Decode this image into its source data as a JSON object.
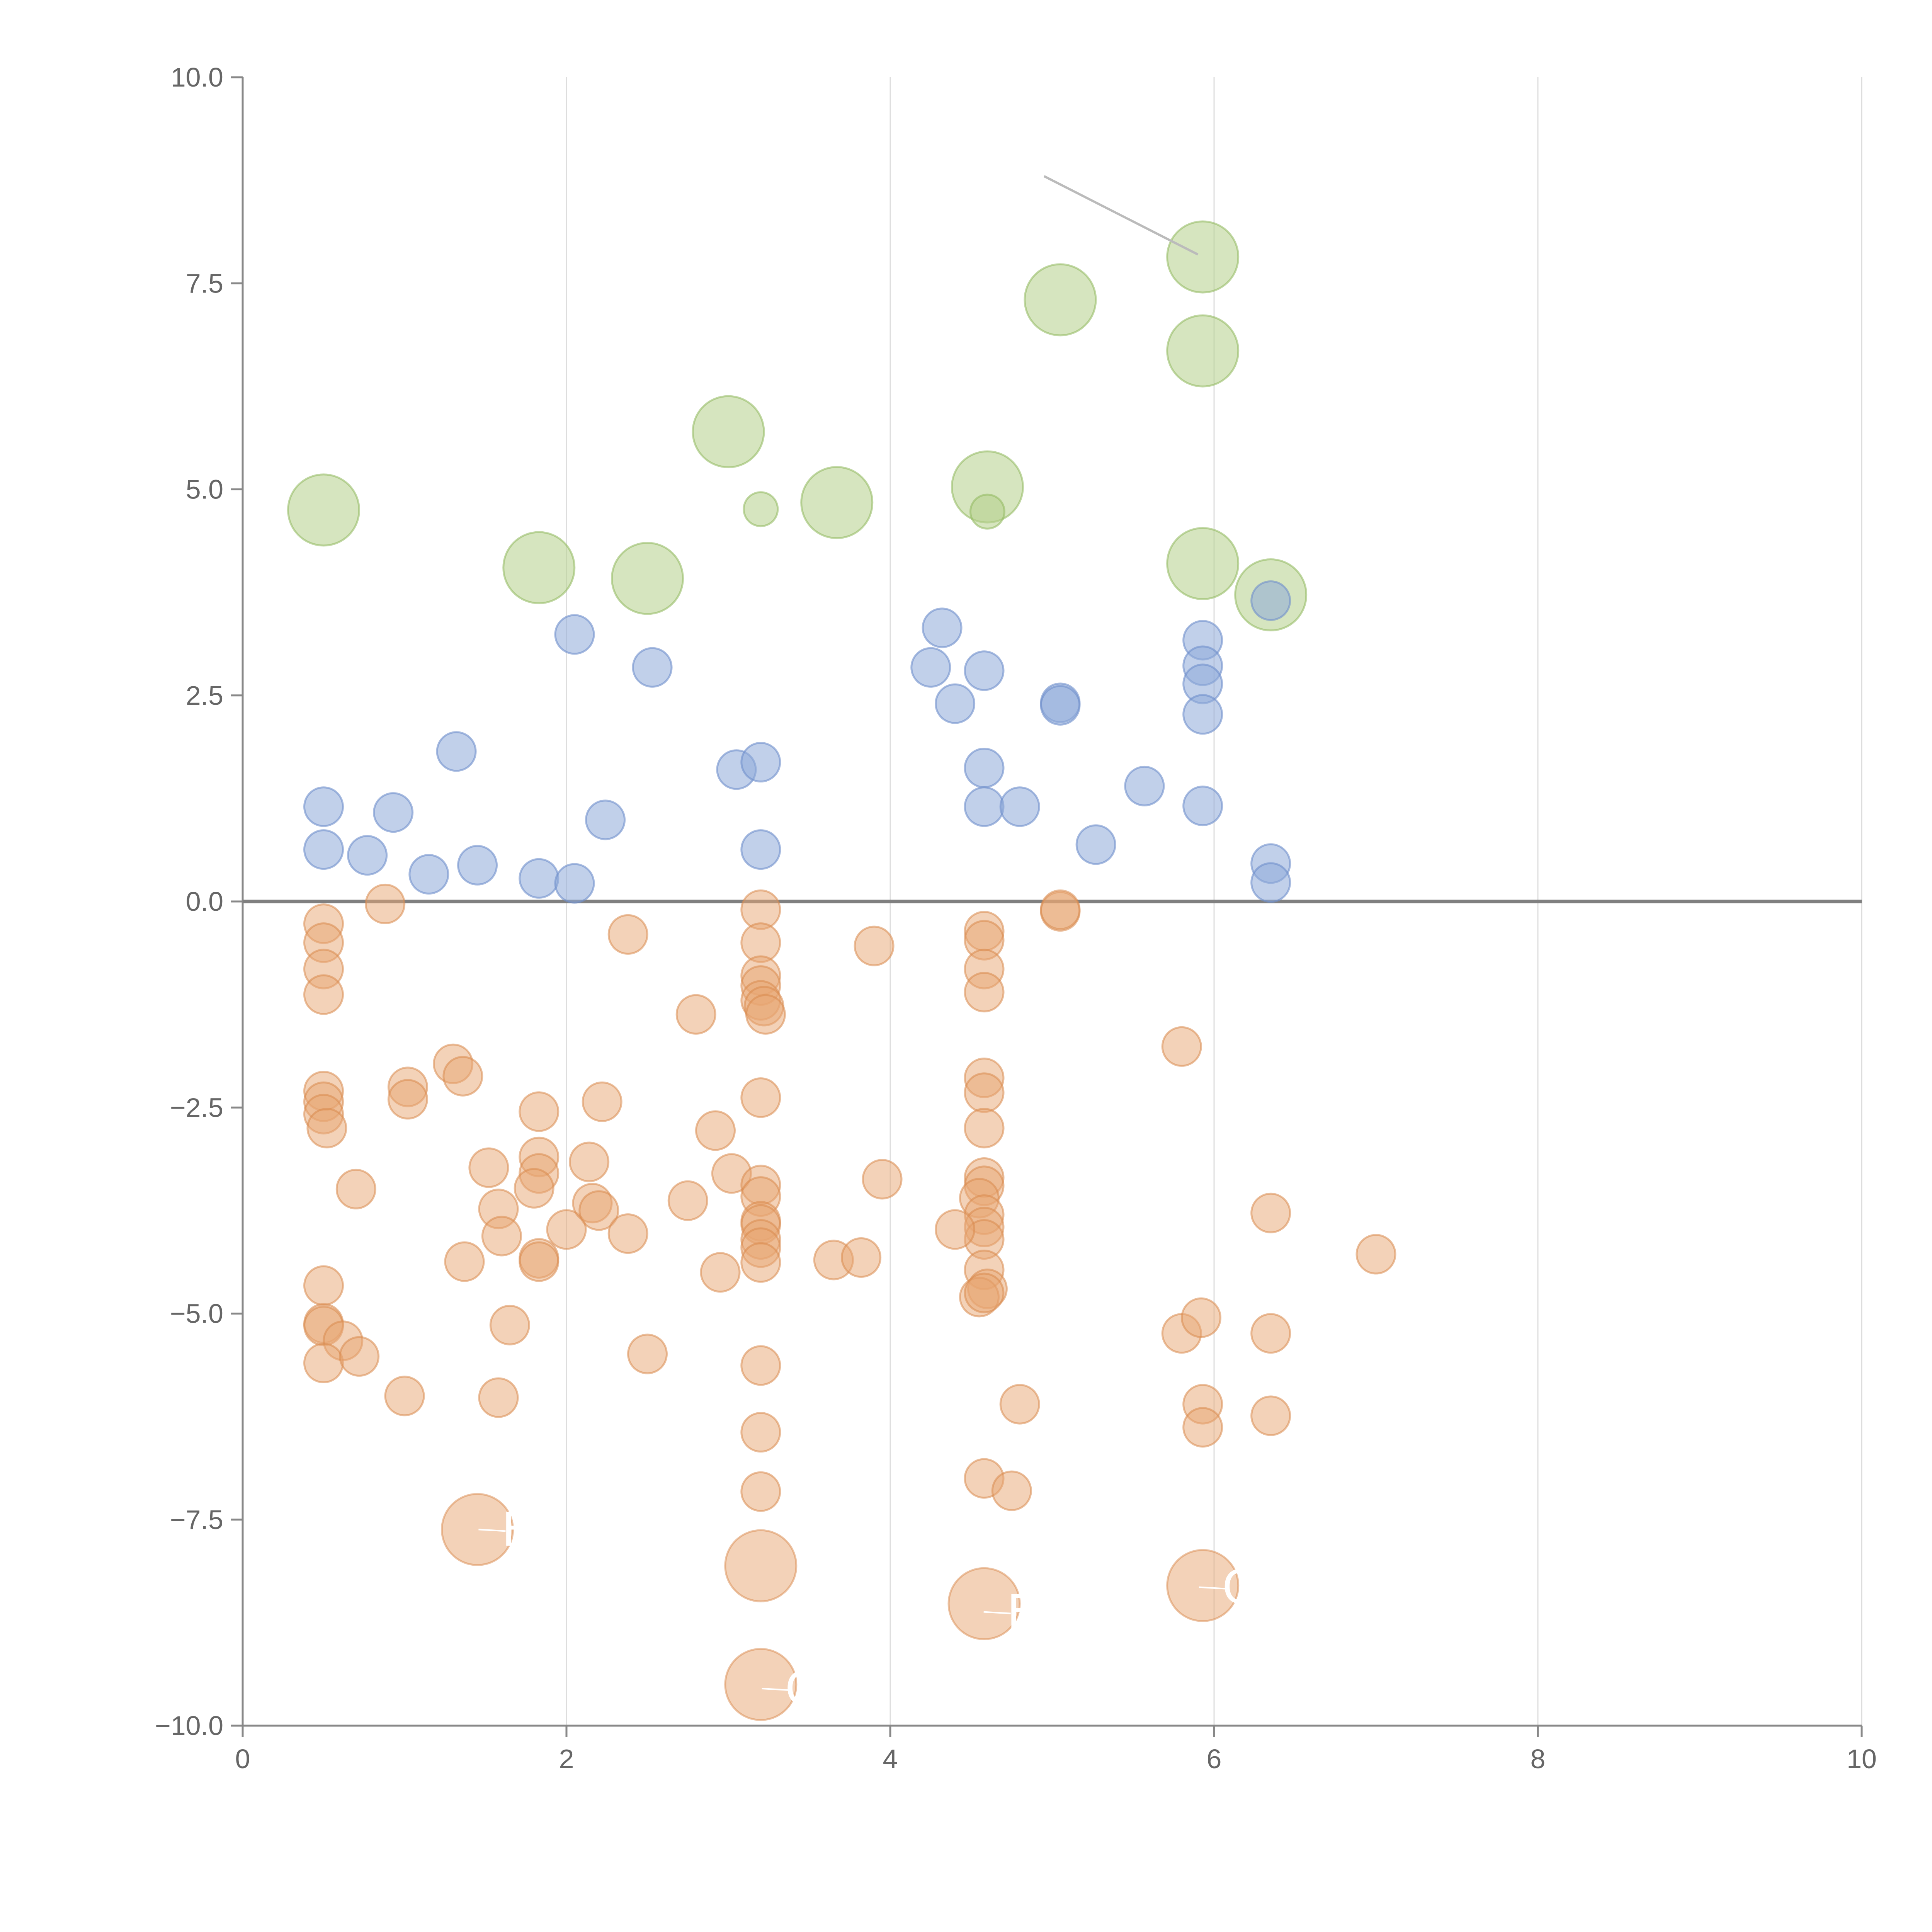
{
  "chart_data": {
    "type": "scatter",
    "title": "",
    "xlabel": "",
    "ylabel": "",
    "xlim": [
      0,
      10
    ],
    "ylim": [
      -10,
      10
    ],
    "xticks": [
      "0",
      "2",
      "4",
      "6",
      "8",
      "10"
    ],
    "yticks": [
      "10.0",
      "7.5",
      "5.0",
      "2.5",
      "0.0",
      "−2.5",
      "−5.0",
      "−7.5",
      "−10.0"
    ],
    "xtick_values": [
      0,
      2,
      4,
      6,
      8,
      10
    ],
    "ytick_values": [
      10,
      7.5,
      5,
      2.5,
      0,
      -2.5,
      -5,
      -7.5,
      -10
    ],
    "grid": "vertical",
    "colors": {
      "green": "#b5cf8a",
      "green_stroke": "#8fb85c",
      "blue": "#8eaad8",
      "blue_stroke": "#6f8fcc",
      "orange": "#e8a672",
      "orange_stroke": "#d98a4e"
    },
    "series": [
      {
        "name": "green",
        "size": "large",
        "points": [
          [
            0.5,
            4.75
          ],
          [
            1.83,
            4.05
          ],
          [
            2.5,
            3.92
          ],
          [
            3.0,
            5.7
          ],
          [
            3.2,
            4.76
          ],
          [
            3.67,
            4.84
          ],
          [
            4.6,
            5.03
          ],
          [
            4.6,
            4.73
          ],
          [
            5.05,
            7.3
          ],
          [
            5.93,
            7.82
          ],
          [
            5.93,
            6.68
          ],
          [
            5.93,
            4.1
          ],
          [
            6.35,
            3.72
          ]
        ],
        "small_points": [
          3,
          6
        ]
      },
      {
        "name": "blue",
        "size": "small",
        "points": [
          [
            0.5,
            1.15
          ],
          [
            0.5,
            0.63
          ],
          [
            0.77,
            0.56
          ],
          [
            0.93,
            1.08
          ],
          [
            1.15,
            0.33
          ],
          [
            1.32,
            1.82
          ],
          [
            1.45,
            0.44
          ],
          [
            1.83,
            0.28
          ],
          [
            2.05,
            3.24
          ],
          [
            2.05,
            0.22
          ],
          [
            2.24,
            0.99
          ],
          [
            2.53,
            2.84
          ],
          [
            3.05,
            1.6
          ],
          [
            3.2,
            1.69
          ],
          [
            3.2,
            0.63
          ],
          [
            4.25,
            2.84
          ],
          [
            4.32,
            3.32
          ],
          [
            4.4,
            2.4
          ],
          [
            4.58,
            2.8
          ],
          [
            4.58,
            1.62
          ],
          [
            4.58,
            1.15
          ],
          [
            4.8,
            1.15
          ],
          [
            5.05,
            2.41
          ],
          [
            5.05,
            2.38
          ],
          [
            5.27,
            0.69
          ],
          [
            5.57,
            1.4
          ],
          [
            5.93,
            3.17
          ],
          [
            5.93,
            2.86
          ],
          [
            5.93,
            2.64
          ],
          [
            5.93,
            2.27
          ],
          [
            5.93,
            1.16
          ],
          [
            6.35,
            3.65
          ],
          [
            6.35,
            0.46
          ],
          [
            6.35,
            0.23
          ]
        ]
      },
      {
        "name": "orange",
        "size": "small",
        "points": [
          [
            0.5,
            -0.27
          ],
          [
            0.5,
            -0.5
          ],
          [
            0.5,
            -0.82
          ],
          [
            0.5,
            -1.13
          ],
          [
            0.88,
            -0.03
          ],
          [
            0.5,
            -2.3
          ],
          [
            0.5,
            -2.43
          ],
          [
            0.5,
            -2.58
          ],
          [
            0.52,
            -2.75
          ],
          [
            0.7,
            -3.49
          ],
          [
            1.02,
            -2.25
          ],
          [
            1.02,
            -2.4
          ],
          [
            1.3,
            -1.97
          ],
          [
            1.36,
            -2.12
          ],
          [
            1.52,
            -3.23
          ],
          [
            1.58,
            -3.73
          ],
          [
            1.6,
            -4.06
          ],
          [
            1.37,
            -4.37
          ],
          [
            1.83,
            -2.55
          ],
          [
            1.83,
            -3.1
          ],
          [
            1.83,
            -3.3
          ],
          [
            1.8,
            -3.48
          ],
          [
            1.83,
            -4.33
          ],
          [
            1.83,
            -4.37
          ],
          [
            2.0,
            -3.98
          ],
          [
            2.14,
            -3.16
          ],
          [
            2.16,
            -3.66
          ],
          [
            2.2,
            -3.75
          ],
          [
            2.22,
            -2.43
          ],
          [
            2.38,
            -4.03
          ],
          [
            2.38,
            -0.4
          ],
          [
            0.5,
            -4.66
          ],
          [
            0.5,
            -5.12
          ],
          [
            0.5,
            -5.15
          ],
          [
            0.62,
            -5.33
          ],
          [
            0.5,
            -5.6
          ],
          [
            0.72,
            -5.52
          ],
          [
            1.0,
            -6.0
          ],
          [
            1.58,
            -6.02
          ],
          [
            1.65,
            -5.14
          ],
          [
            2.5,
            -5.49
          ],
          [
            2.75,
            -3.63
          ],
          [
            2.8,
            -1.37
          ],
          [
            2.92,
            -2.78
          ],
          [
            3.02,
            -3.3
          ],
          [
            2.95,
            -4.5
          ],
          [
            3.2,
            -0.1
          ],
          [
            3.2,
            -0.5
          ],
          [
            3.2,
            -0.9
          ],
          [
            3.2,
            -1.02
          ],
          [
            3.2,
            -1.2
          ],
          [
            3.22,
            -1.27
          ],
          [
            3.23,
            -1.37
          ],
          [
            3.2,
            -2.38
          ],
          [
            3.2,
            -3.44
          ],
          [
            3.2,
            -3.58
          ],
          [
            3.2,
            -3.88
          ],
          [
            3.2,
            -3.92
          ],
          [
            3.2,
            -4.1
          ],
          [
            3.2,
            -4.2
          ],
          [
            3.2,
            -4.38
          ],
          [
            3.65,
            -4.35
          ],
          [
            3.82,
            -4.32
          ],
          [
            3.9,
            -0.54
          ],
          [
            3.95,
            -3.37
          ],
          [
            3.2,
            -5.63
          ],
          [
            3.2,
            -6.44
          ],
          [
            3.2,
            -7.16
          ],
          [
            4.58,
            -0.36
          ],
          [
            4.58,
            -0.47
          ],
          [
            4.58,
            -0.82
          ],
          [
            4.58,
            -1.1
          ],
          [
            4.58,
            -2.14
          ],
          [
            4.58,
            -2.32
          ],
          [
            4.58,
            -2.75
          ],
          [
            4.58,
            -3.35
          ],
          [
            4.58,
            -3.45
          ],
          [
            4.55,
            -3.6
          ],
          [
            4.58,
            -3.8
          ],
          [
            4.58,
            -3.95
          ],
          [
            4.58,
            -4.1
          ],
          [
            4.58,
            -4.47
          ],
          [
            4.4,
            -3.98
          ],
          [
            4.6,
            -4.7
          ],
          [
            4.55,
            -4.8
          ],
          [
            4.58,
            -4.75
          ],
          [
            4.8,
            -6.1
          ],
          [
            4.58,
            -7.0
          ],
          [
            4.75,
            -7.15
          ],
          [
            5.05,
            -0.12
          ],
          [
            5.05,
            -0.1
          ],
          [
            5.8,
            -1.76
          ],
          [
            5.8,
            -5.24
          ],
          [
            5.92,
            -5.05
          ],
          [
            5.93,
            -6.1
          ],
          [
            5.93,
            -6.38
          ],
          [
            6.35,
            -3.78
          ],
          [
            6.35,
            -5.24
          ],
          [
            6.35,
            -6.24
          ],
          [
            7.0,
            -4.28
          ]
        ],
        "large_points": [
          [
            1.45,
            -7.62
          ],
          [
            3.2,
            -8.06
          ],
          [
            4.58,
            -8.52
          ],
          [
            5.93,
            -8.3
          ],
          [
            3.2,
            -9.5
          ]
        ]
      }
    ],
    "annotations": [
      {
        "text": "H",
        "x": 1.6,
        "y": -7.62
      },
      {
        "text": "F",
        "x": 4.72,
        "y": -8.62
      },
      {
        "text": "C",
        "x": 6.05,
        "y": -8.32
      },
      {
        "text": "C",
        "x": 3.35,
        "y": -9.55
      }
    ],
    "reference_lines": {
      "zero_line": 0,
      "leader": {
        "from": [
          4.95,
          8.8
        ],
        "to": [
          5.9,
          7.85
        ]
      }
    }
  }
}
